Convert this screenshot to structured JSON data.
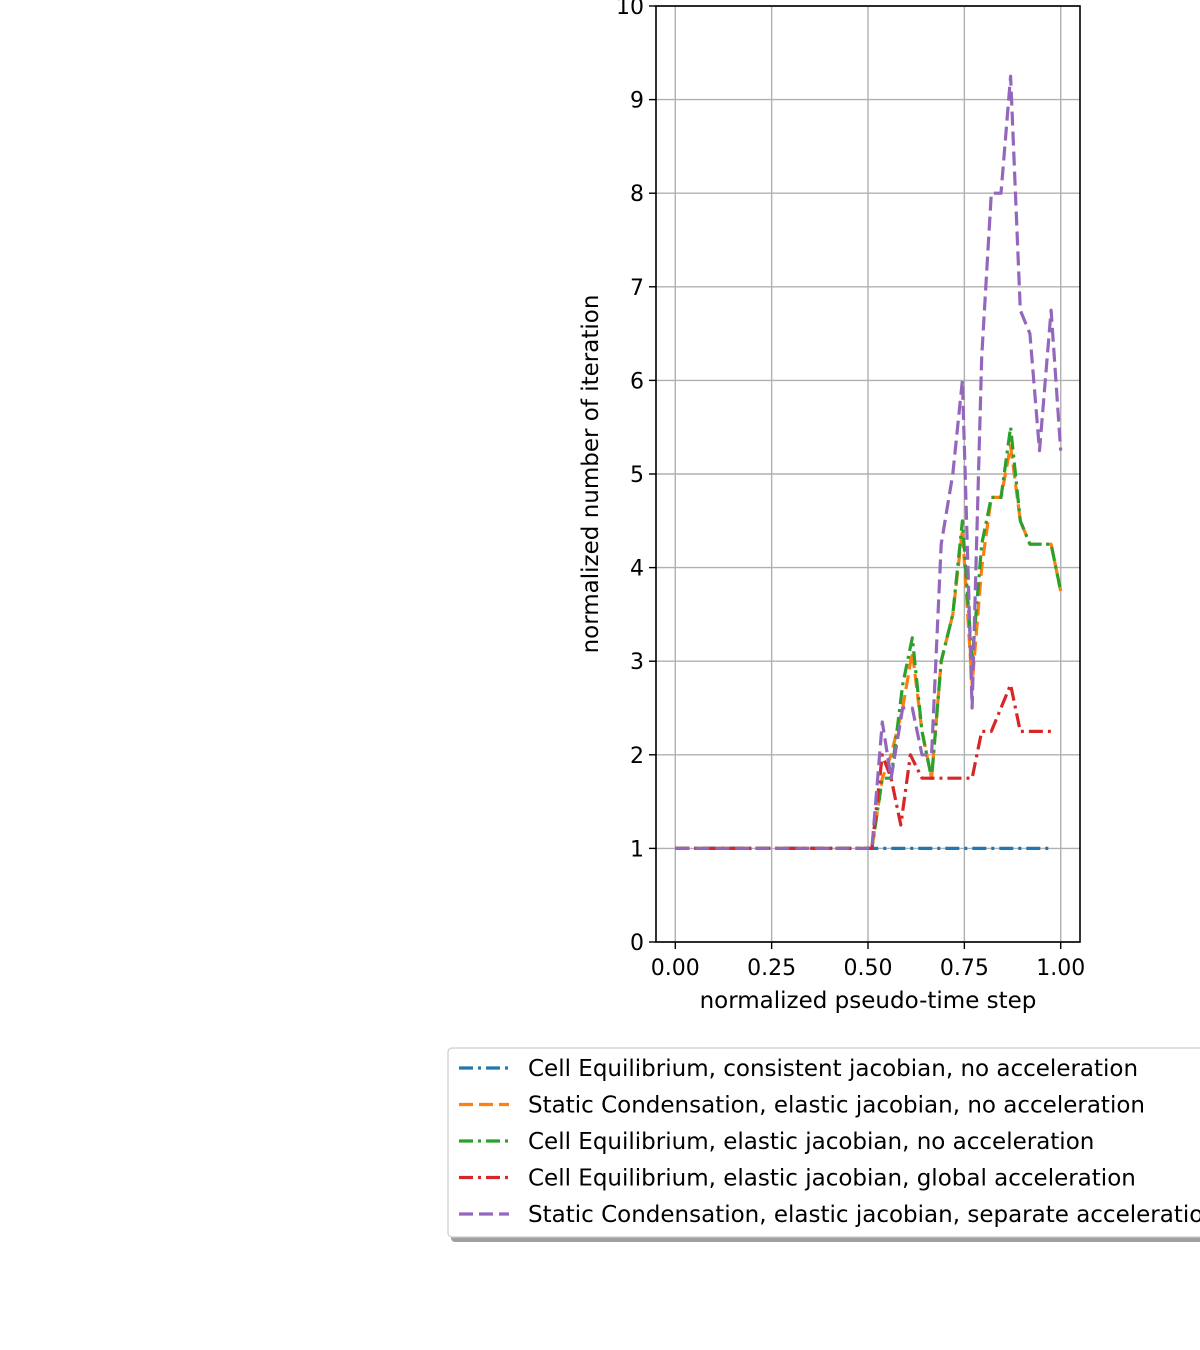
{
  "chart_data": {
    "type": "line",
    "title": "",
    "xlabel": "normalized pseudo-time step",
    "ylabel": "normalized number of iteration",
    "xlim": [
      -0.05,
      1.05
    ],
    "ylim": [
      0,
      10
    ],
    "xticks": [
      "0.00",
      "0.25",
      "0.50",
      "0.75",
      "1.00"
    ],
    "yticks": [
      "0",
      "1",
      "2",
      "3",
      "4",
      "5",
      "6",
      "7",
      "8",
      "9",
      "10"
    ],
    "grid": true,
    "legend_position": "below plot",
    "series": [
      {
        "name": "Cell Equilibrium, consistent jacobian, no acceleration",
        "color": "#1f77b4",
        "style": "dashdot",
        "x": [
          0.0,
          0.1,
          0.2,
          0.3,
          0.4,
          0.5,
          0.6,
          0.7,
          0.8,
          0.9,
          0.98
        ],
        "y": [
          1,
          1,
          1,
          1,
          1,
          1,
          1,
          1,
          1,
          1,
          1
        ]
      },
      {
        "name": "Static Condensation, elastic jacobian, no acceleration",
        "color": "#ff7f0e",
        "style": "dashed",
        "x": [
          0.0,
          0.51,
          0.537,
          0.56,
          0.59,
          0.615,
          0.64,
          0.665,
          0.69,
          0.72,
          0.745,
          0.77,
          0.795,
          0.82,
          0.845,
          0.87,
          0.895,
          0.92,
          0.945,
          0.975,
          1.0
        ],
        "y": [
          1,
          1,
          1.75,
          2.0,
          2.5,
          3.1,
          2.25,
          1.75,
          3.0,
          3.5,
          4.4,
          2.75,
          4.0,
          4.75,
          4.75,
          5.3,
          4.5,
          4.25,
          4.25,
          4.25,
          3.75
        ]
      },
      {
        "name": "Cell Equilibrium, elastic jacobian, no acceleration",
        "color": "#2ca02c",
        "style": "dashdot",
        "x": [
          0.0,
          0.51,
          0.537,
          0.56,
          0.59,
          0.615,
          0.64,
          0.665,
          0.69,
          0.72,
          0.745,
          0.77,
          0.795,
          0.82,
          0.845,
          0.87,
          0.895,
          0.92,
          0.945,
          0.975,
          1.0
        ],
        "y": [
          1,
          1,
          1.75,
          1.75,
          2.75,
          3.25,
          2.25,
          1.75,
          3.0,
          3.5,
          4.5,
          3.0,
          4.25,
          4.75,
          4.75,
          5.5,
          4.5,
          4.25,
          4.25,
          4.25,
          3.75
        ]
      },
      {
        "name": "Cell Equilibrium, elastic jacobian, global acceleration",
        "color": "#d62728",
        "style": "dashdot",
        "x": [
          0.0,
          0.51,
          0.537,
          0.56,
          0.585,
          0.61,
          0.64,
          0.665,
          0.69,
          0.72,
          0.745,
          0.77,
          0.795,
          0.82,
          0.845,
          0.87,
          0.895,
          0.92,
          0.945,
          0.98
        ],
        "y": [
          1,
          1,
          2.0,
          1.75,
          1.25,
          2.0,
          1.75,
          1.75,
          1.75,
          1.75,
          1.75,
          1.75,
          2.25,
          2.25,
          2.5,
          2.75,
          2.25,
          2.25,
          2.25,
          2.25
        ]
      },
      {
        "name": "Static Condensation, elastic jacobian, separate acceleration",
        "color": "#9467bd",
        "style": "dashed",
        "x": [
          0.0,
          0.51,
          0.537,
          0.56,
          0.59,
          0.615,
          0.64,
          0.665,
          0.69,
          0.72,
          0.745,
          0.77,
          0.795,
          0.82,
          0.845,
          0.87,
          0.895,
          0.92,
          0.945,
          0.975,
          1.0
        ],
        "y": [
          1,
          1,
          2.35,
          1.75,
          2.5,
          2.5,
          2.0,
          2.0,
          4.25,
          5.0,
          6.0,
          2.5,
          6.25,
          8.0,
          8.0,
          9.25,
          6.75,
          6.5,
          5.25,
          6.75,
          5.25
        ]
      }
    ]
  }
}
